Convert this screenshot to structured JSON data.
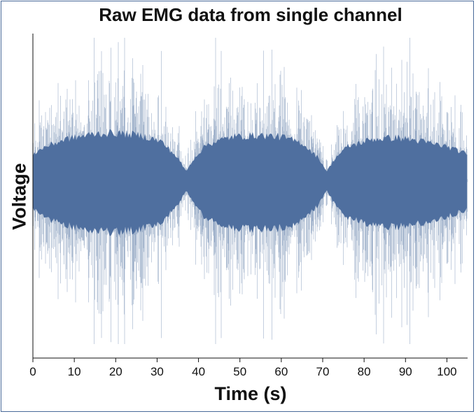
{
  "chart_data": {
    "type": "line",
    "title": "Raw EMG data from single channel",
    "xlabel": "Time (s)",
    "ylabel": "Voltage",
    "xlim": [
      0,
      105
    ],
    "xticks": [
      0,
      10,
      20,
      30,
      40,
      50,
      60,
      70,
      80,
      90,
      100
    ],
    "y_ticks_shown": false,
    "grid": false,
    "series": [
      {
        "color": "#4f6f9f",
        "description_segments": [
          {
            "t_start": 0,
            "t_end": 37,
            "level": "high"
          },
          {
            "t_start": 37,
            "t_end": 71,
            "level": "high"
          },
          {
            "t_start": 71,
            "t_end": 105,
            "level": "high"
          }
        ],
        "envelope_x": [
          0,
          3,
          8,
          15,
          20,
          26,
          31,
          35,
          37,
          39,
          42,
          48,
          55,
          60,
          65,
          69,
          71,
          73,
          76,
          82,
          88,
          94,
          100,
          105
        ],
        "envelope_y": [
          0.35,
          0.45,
          0.55,
          0.62,
          0.63,
          0.6,
          0.52,
          0.3,
          0.12,
          0.3,
          0.48,
          0.58,
          0.6,
          0.58,
          0.5,
          0.3,
          0.12,
          0.3,
          0.45,
          0.55,
          0.57,
          0.52,
          0.45,
          0.35
        ]
      }
    ]
  }
}
